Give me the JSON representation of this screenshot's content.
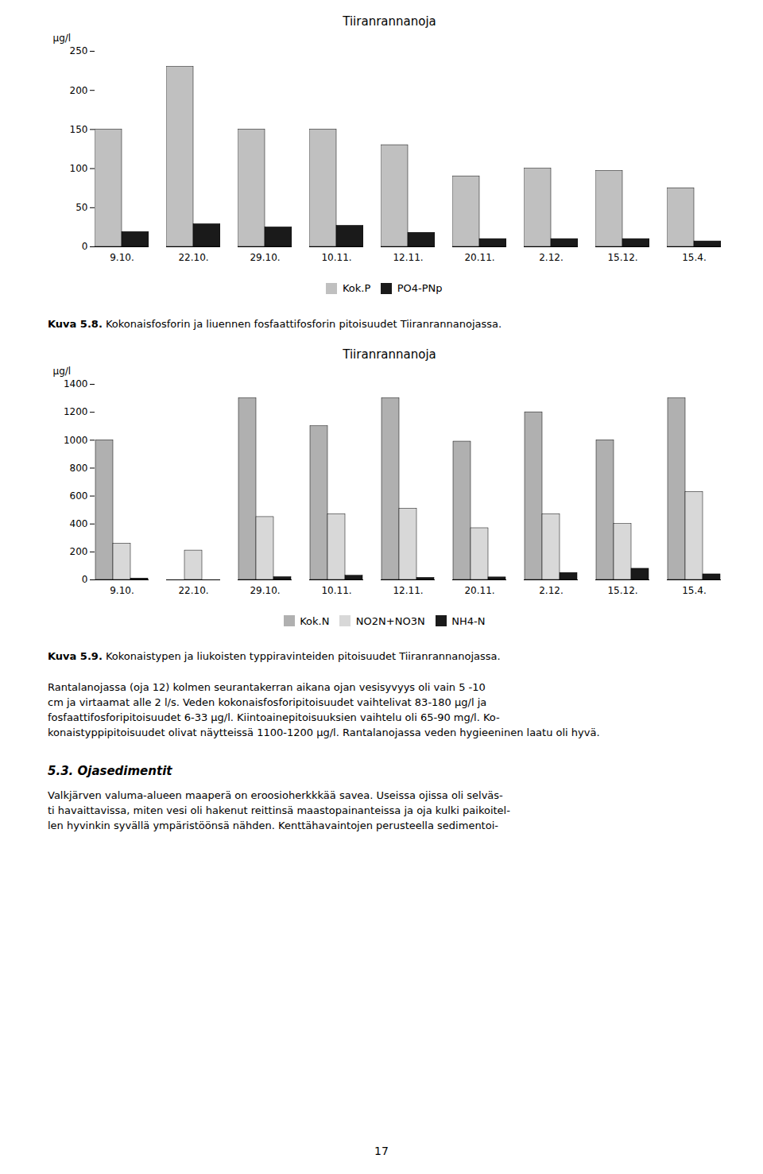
{
  "chart_data": [
    {
      "type": "bar",
      "title": "Tiiranrannanoja",
      "categories": [
        "9.10.",
        "22.10.",
        "29.10.",
        "10.11.",
        "12.11.",
        "20.11.",
        "2.12.",
        "15.12.",
        "15.4."
      ],
      "series": [
        {
          "name": "Kok.P",
          "color": "#c0c0c0",
          "values": [
            150,
            230,
            150,
            150,
            130,
            90,
            100,
            97,
            75
          ]
        },
        {
          "name": "PO4-PNp",
          "color": "#1a1a1a",
          "values": [
            19,
            29,
            25,
            27,
            18,
            10,
            10,
            10,
            7
          ]
        }
      ],
      "ylabel": "μg/l",
      "ylim": [
        0,
        250
      ],
      "yticks": [
        0,
        50,
        100,
        150,
        200,
        250
      ],
      "grid": false,
      "legend": "bottom"
    },
    {
      "type": "bar",
      "title": "Tiiranrannanoja",
      "categories": [
        "9.10.",
        "22.10.",
        "29.10.",
        "10.11.",
        "12.11.",
        "20.11.",
        "2.12.",
        "15.12.",
        "15.4."
      ],
      "series": [
        {
          "name": "Kok.N",
          "color": "#b0b0b0",
          "values": [
            1000,
            0,
            1300,
            1100,
            1300,
            990,
            1200,
            1000,
            1300
          ]
        },
        {
          "name": "NO2N+NO3N",
          "color": "#d8d8d8",
          "values": [
            260,
            210,
            450,
            470,
            510,
            370,
            470,
            400,
            630
          ]
        },
        {
          "name": "NH4-N",
          "color": "#1a1a1a",
          "values": [
            10,
            0,
            20,
            30,
            15,
            18,
            50,
            80,
            40
          ]
        }
      ],
      "ylabel": "μg/l",
      "ylim": [
        0,
        1400
      ],
      "yticks": [
        0,
        200,
        400,
        600,
        800,
        1000,
        1200,
        1400
      ],
      "grid": false,
      "legend": "bottom"
    }
  ],
  "captions": [
    {
      "label": "Kuva 5.8.",
      "text": " Kokonaisfosforin ja liuennen fosfaattifosforin pitoisuudet Tiiranrannanojassa."
    },
    {
      "label": "Kuva 5.9.",
      "text": " Kokonaistypen ja liukoisten typpiravinteiden pitoisuudet Tiiranrannanojassa."
    }
  ],
  "body_lines": [
    "Rantalanojassa (oja 12) kolmen seurantakerran aikana ojan vesisyvyys oli vain 5 -10",
    "cm ja virtaamat alle 2 l/s. Veden kokonaisfosforipitoisuudet vaihtelivat 83-180 μg/l ja",
    "fosfaattifosforipitoisuudet 6-33 μg/l. Kiintoainepitoisuuksien vaihtelu oli 65-90 mg/l. Ko-",
    "konaistyppipitoisuudet olivat näytteissä 1100-1200 μg/l. Rantalanojassa veden hygieeninen laatu oli hyvä."
  ],
  "section_title": "5.3. Ojasedimentit",
  "section_lines": [
    "Valkjärven valuma-alueen maaperä on eroosioherkkkää savea. Useissa ojissa oli selväs-",
    "ti havaittavissa, miten vesi oli hakenut reittinsä maastopainanteissa ja oja kulki paikoitel-",
    "len hyvinkin syvällä ympäristöönsä nähden. Kenttähavaintojen perusteella sedimentoi-"
  ],
  "page_number": "17"
}
